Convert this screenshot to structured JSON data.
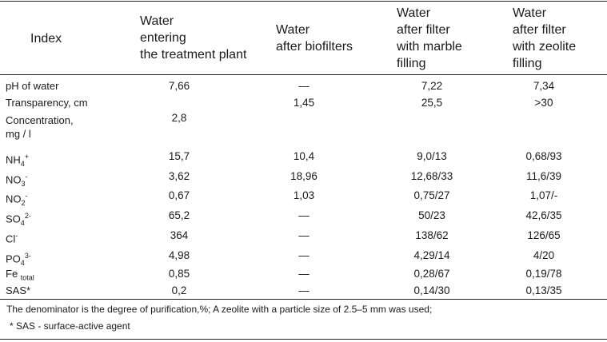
{
  "header": {
    "index": "Index",
    "col1": "Water\nentering\nthe treatment plant",
    "col2": "Water\nafter biofilters",
    "col3": "Water\nafter filter\nwith marble\nfilling",
    "col4": "Water\nafter filter\nwith zeolite\nfilling"
  },
  "rows": [
    {
      "label": "pH of water",
      "v": [
        "7,66",
        "—",
        "7,22",
        "7,34"
      ]
    },
    {
      "label": "Transparency, cm",
      "v": [
        "",
        "1,45",
        "25,5",
        ">30"
      ]
    },
    {
      "label": "Concentration,",
      "label2": "mg / l",
      "v": [
        "2,8",
        "",
        "",
        ""
      ]
    },
    {
      "label": "NH",
      "sub": "4",
      "sup": "+",
      "v": [
        "15,7",
        "10,4",
        "9,0/13",
        "0,68/93"
      ]
    },
    {
      "label": "NO",
      "sub": "3",
      "sup": "-",
      "v": [
        "3,62",
        "18,96",
        "12,68/33",
        "11,6/39"
      ]
    },
    {
      "label": "NO",
      "sub": "2",
      "sup": "-",
      "v": [
        "0,67",
        "1,03",
        "0,75/27",
        "1,07/-"
      ]
    },
    {
      "label": "SO",
      "sub": "4",
      "sup": "2-",
      "v": [
        "65,2",
        "—",
        "50/23",
        "42,6/35"
      ]
    },
    {
      "label": "Cl",
      "sub": "",
      "sup": "-",
      "v": [
        "364",
        "—",
        "138/62",
        "126/65"
      ]
    },
    {
      "label": "PO",
      "sub": "4",
      "sup": "3-",
      "v": [
        "4,98",
        "—",
        "4,29/14",
        "4/20"
      ]
    },
    {
      "label": "Fe ",
      "sub": "total",
      "sup": "",
      "v": [
        "0,85",
        "—",
        "0,28/67",
        "0,19/78"
      ]
    },
    {
      "label": "SAS*",
      "v": [
        "0,2",
        "—",
        "0,14/30",
        "0,13/35"
      ]
    }
  ],
  "notes": {
    "line1": "The denominator is the degree of purification,%;  A zeolite with a particle size of 2.5–5 mm was used;",
    "line2": "* SAS - surface-active agent"
  }
}
